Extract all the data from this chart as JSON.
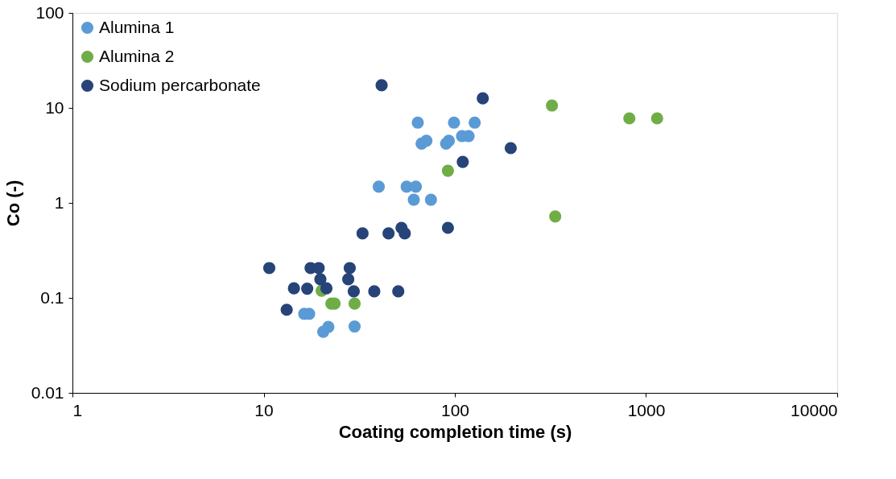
{
  "chart_data": {
    "type": "scatter",
    "xlabel": "Coating completion time (s)",
    "ylabel": "Co (-)",
    "log": "xy",
    "xlim": [
      1,
      10000
    ],
    "xticks": [
      1,
      10,
      100,
      1000,
      10000
    ],
    "ylim": [
      0.01,
      100
    ],
    "yticks": [
      0.01,
      0.1,
      1,
      10,
      100
    ],
    "grid": false,
    "legend": "top left",
    "marker": "circle",
    "series": [
      {
        "name": "Alumina 1",
        "color": "#5b9bd5",
        "x": [
          40,
          56,
          62.5,
          61,
          75,
          64,
          99,
          127,
          67,
          71,
          90,
          93,
          109,
          118,
          16.3,
          17.3,
          20.5,
          21.8,
          29.9
        ],
        "values": [
          1.48,
          1.48,
          1.48,
          1.08,
          1.08,
          7.0,
          7.0,
          7.0,
          4.2,
          4.5,
          4.2,
          4.5,
          5.05,
          5.05,
          0.068,
          0.068,
          0.044,
          0.0495,
          0.05
        ]
      },
      {
        "name": "Alumina 2",
        "color": "#70ad47",
        "x": [
          322,
          818,
          1143,
          335,
          92,
          20.1,
          22.6,
          23.5,
          29.9
        ],
        "values": [
          10.6,
          7.76,
          7.76,
          0.72,
          2.18,
          0.119,
          0.087,
          0.087,
          0.087
        ]
      },
      {
        "name": "Sodium percarbonate",
        "color": "#264478",
        "x": [
          41.4,
          140,
          196,
          110,
          32.9,
          45,
          52.6,
          54.7,
          92,
          10.7,
          17.6,
          19.4,
          28.2,
          19.8,
          27.7,
          14.4,
          16.9,
          21.3,
          29.6,
          37.9,
          50.6,
          13.2
        ],
        "values": [
          17.3,
          12.6,
          3.77,
          2.7,
          0.477,
          0.477,
          0.546,
          0.477,
          0.546,
          0.206,
          0.206,
          0.206,
          0.206,
          0.157,
          0.157,
          0.126,
          0.125,
          0.126,
          0.117,
          0.117,
          0.117,
          0.075
        ]
      }
    ]
  }
}
